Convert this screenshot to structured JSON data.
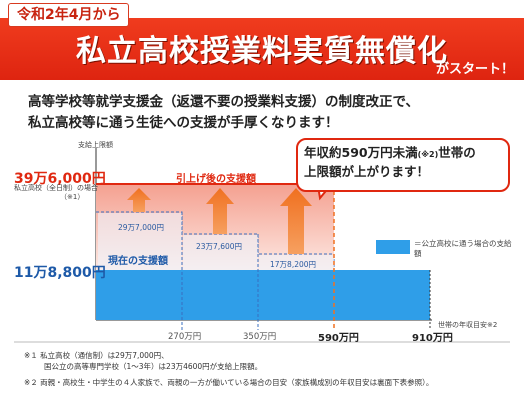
{
  "header": {
    "date_tag": "令和2年4月から",
    "title": "私立高校授業料実質無償化",
    "subtitle": "がスタート！"
  },
  "lead": {
    "line1": "高等学校等就学支援金（返還不要の授業料支援）の制度改正で、",
    "line2": "私立高校等に通う生徒への支援が手厚くなります！"
  },
  "chart": {
    "y_axis_title": "支給上限額",
    "max_value": "39万6,000円",
    "max_note": "私立高校（全日制）の場合",
    "max_note_ref": "（※1）",
    "base_value": "11万8,800円",
    "label_after": "引上げ後の支援額",
    "label_current": "現在の支援額",
    "amount_1": "29万7,000円",
    "amount_2": "23万7,600円",
    "amount_3": "17万8,200円",
    "callout_line1": "年収約590万円未満",
    "callout_note": "(※2)",
    "callout_line1_end": "世帯の",
    "callout_line2": "上限額が上がります！",
    "legend": "＝公立高校に通う場合の支給額",
    "x_ticks": [
      "270万円",
      "350万円",
      "590万円",
      "910万円"
    ],
    "x_axis_title": "世帯の年収目安※2",
    "colors": {
      "accent_red": "#e02810",
      "public_blue": "#2f9ee8",
      "current_blue": "#3a6fc0"
    }
  },
  "notes": {
    "n1a": "※１ 私立高校（通信制）は29万7,000円、",
    "n1b": "国公立の高等専門学校（1～3年）は23万4600円が支給上限額。",
    "n2": "※２ 両親・高校生・中学生の４人家族で、両親の一方が働いている場合の目安（家族構成別の年収目安は裏面下表参照）。"
  }
}
